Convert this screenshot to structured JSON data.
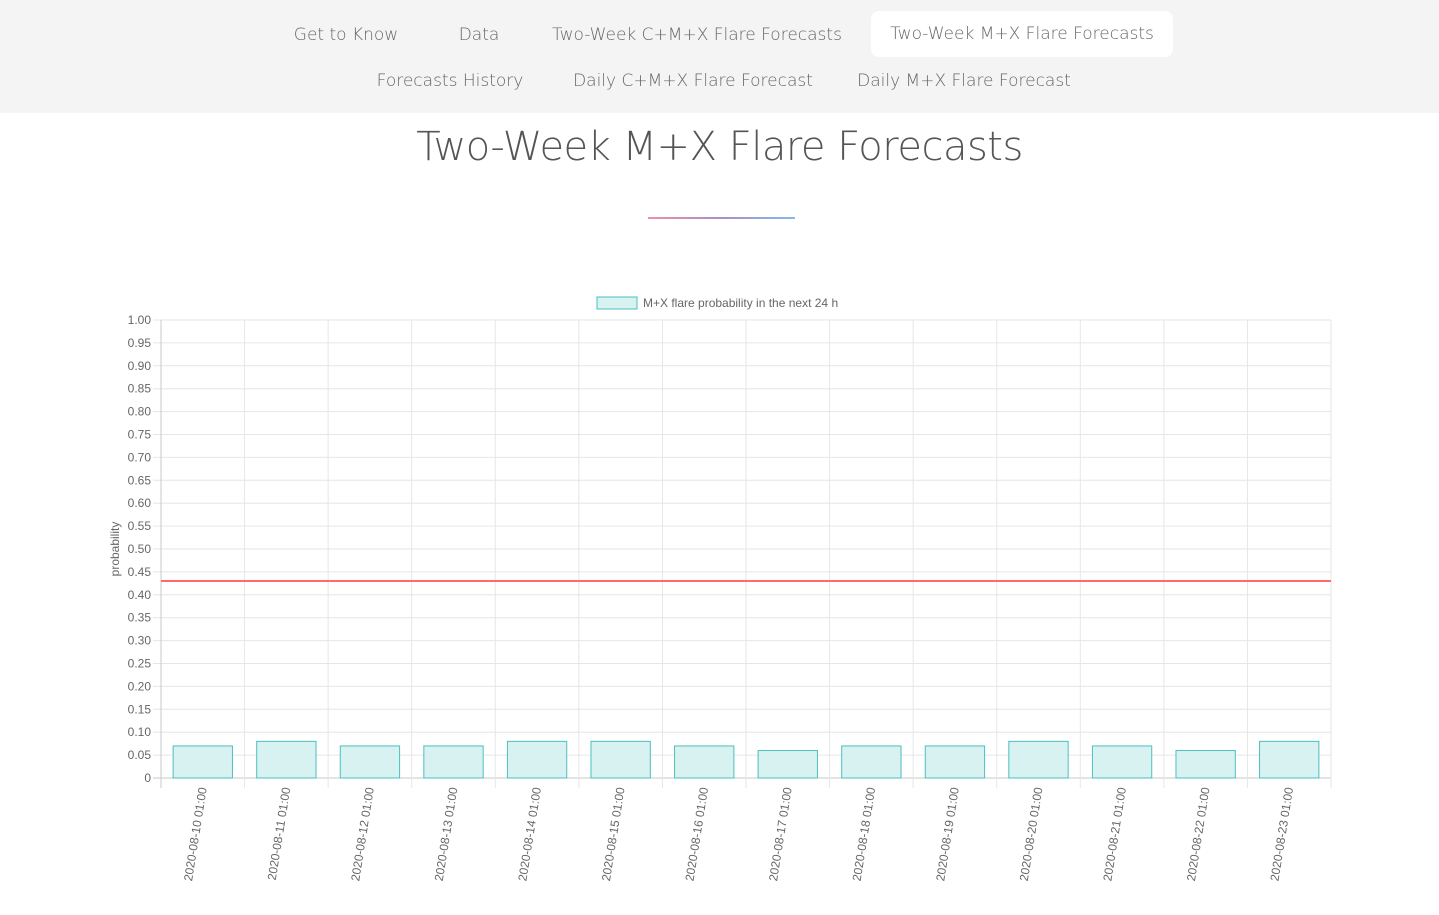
{
  "nav": {
    "items": [
      {
        "label": "Get to Know"
      },
      {
        "label": "Data"
      },
      {
        "label": "Two-Week C+M+X Flare Forecasts"
      },
      {
        "label": "Two-Week M+X Flare Forecasts",
        "active": true
      },
      {
        "label": "Forecasts History"
      },
      {
        "label": "Daily C+M+X Flare Forecast"
      },
      {
        "label": "Daily M+X Flare Forecast"
      }
    ]
  },
  "page": {
    "title": "Two-Week M+X Flare Forecasts"
  },
  "chart_data": {
    "type": "bar",
    "title": "",
    "xlabel": "",
    "ylabel": "probability",
    "ylim": [
      0,
      1
    ],
    "yticks": [
      "0",
      "0.05",
      "0.10",
      "0.15",
      "0.20",
      "0.25",
      "0.30",
      "0.35",
      "0.40",
      "0.45",
      "0.50",
      "0.55",
      "0.60",
      "0.65",
      "0.70",
      "0.75",
      "0.80",
      "0.85",
      "0.90",
      "0.95",
      "1.00"
    ],
    "categories": [
      "2020-08-10 01:00",
      "2020-08-11 01:00",
      "2020-08-12 01:00",
      "2020-08-13 01:00",
      "2020-08-14 01:00",
      "2020-08-15 01:00",
      "2020-08-16 01:00",
      "2020-08-17 01:00",
      "2020-08-18 01:00",
      "2020-08-19 01:00",
      "2020-08-20 01:00",
      "2020-08-21 01:00",
      "2020-08-22 01:00",
      "2020-08-23 01:00"
    ],
    "series": [
      {
        "name": "M+X flare probability in the next 24 h",
        "values": [
          0.07,
          0.08,
          0.07,
          0.07,
          0.08,
          0.08,
          0.07,
          0.06,
          0.07,
          0.07,
          0.08,
          0.07,
          0.06,
          0.08
        ],
        "fill": "#d8f1f1",
        "stroke": "#4bc0c0"
      }
    ],
    "threshold": {
      "value": 0.43,
      "color": "#ff6b6b"
    },
    "grid": true,
    "legend": "top-center"
  }
}
